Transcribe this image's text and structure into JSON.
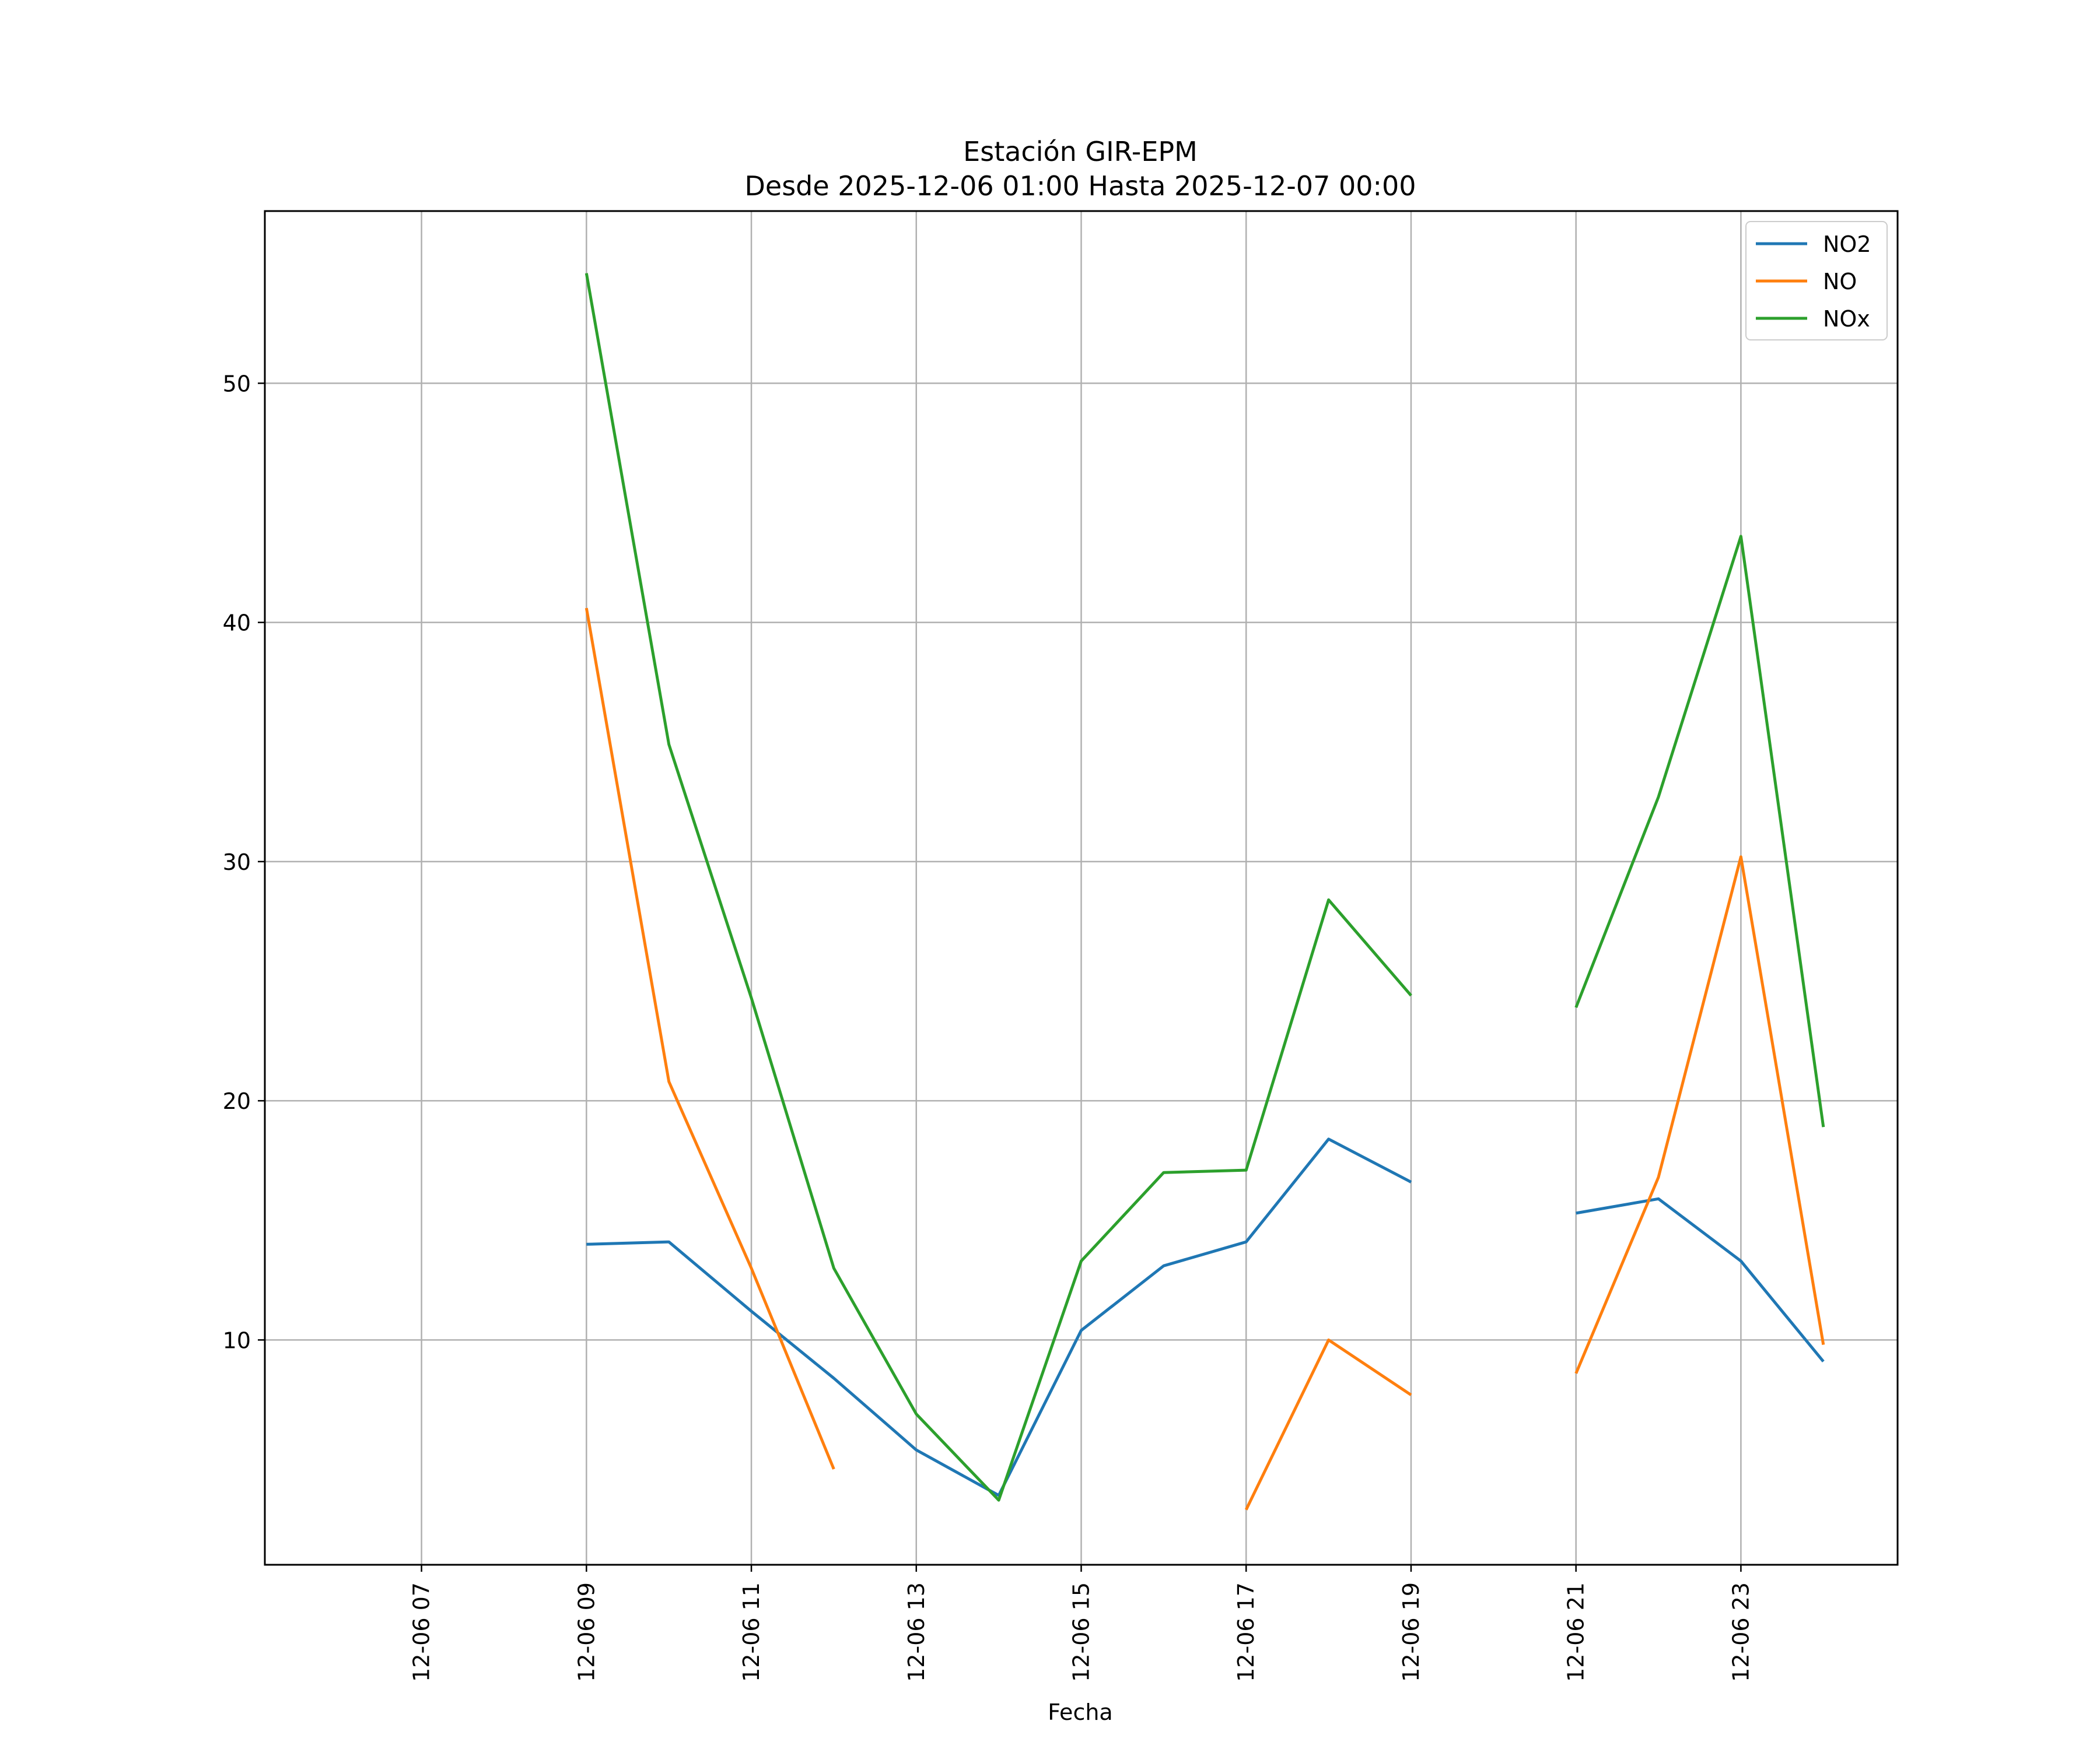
{
  "chart_data": {
    "type": "line",
    "title": "Estación GIR-EPM",
    "subtitle": "Desde 2025-12-06 01:00 Hasta 2025-12-07 00:00",
    "xlabel": "Fecha",
    "ylabel": "",
    "x_hours": [
      6,
      7,
      8,
      9,
      10,
      11,
      12,
      13,
      14,
      15,
      16,
      17,
      18,
      19,
      20,
      21,
      22,
      23,
      24
    ],
    "x_tick_hours": [
      7,
      9,
      11,
      13,
      15,
      17,
      19,
      21,
      23
    ],
    "x_tick_labels": [
      "12-06 07",
      "12-06 09",
      "12-06 11",
      "12-06 13",
      "12-06 15",
      "12-06 17",
      "12-06 19",
      "12-06 21",
      "12-06 23"
    ],
    "xlim": [
      5.1,
      24.9
    ],
    "y_ticks": [
      10,
      20,
      30,
      40,
      50
    ],
    "ylim": [
      0.6,
      57.2
    ],
    "grid": true,
    "legend_position": "top-right",
    "series": [
      {
        "name": "NO2",
        "color": "#1f77b4",
        "values": [
          null,
          null,
          null,
          14.0,
          14.1,
          11.2,
          8.4,
          5.4,
          3.5,
          10.4,
          13.1,
          14.1,
          18.4,
          16.6,
          null,
          15.3,
          15.9,
          13.3,
          9.1
        ]
      },
      {
        "name": "NO",
        "color": "#ff7f0e",
        "values": [
          null,
          null,
          null,
          40.6,
          20.8,
          13.0,
          4.6,
          null,
          null,
          null,
          null,
          2.9,
          10.0,
          7.7,
          null,
          8.6,
          16.8,
          30.2,
          9.8
        ]
      },
      {
        "name": "NOx",
        "color": "#2ca02c",
        "values": [
          null,
          null,
          null,
          54.6,
          34.9,
          24.3,
          13.0,
          6.9,
          3.3,
          13.3,
          17.0,
          17.1,
          28.4,
          24.4,
          null,
          23.9,
          32.7,
          43.6,
          18.9
        ]
      }
    ]
  }
}
